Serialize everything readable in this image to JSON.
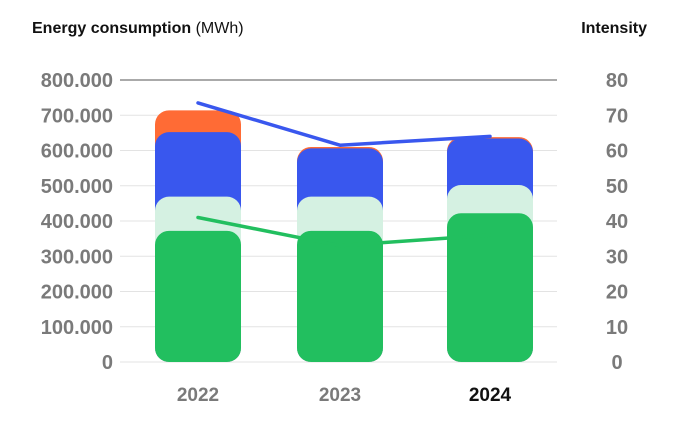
{
  "chart_data": {
    "type": "bar",
    "stacked": true,
    "categories": [
      "2022",
      "2023",
      "2024"
    ],
    "highlighted_category": "2024",
    "ylabel": "Energy consumption",
    "ylabel_unit": "(MWh)",
    "y2label": "Intensity",
    "ylim": [
      0,
      800000
    ],
    "y2lim": [
      0,
      80
    ],
    "yticks": [
      "0",
      "100.000",
      "200.000",
      "300.000",
      "400.000",
      "500.000",
      "600.000",
      "700.000",
      "800.000"
    ],
    "y2ticks": [
      "0",
      "10",
      "20",
      "30",
      "40",
      "50",
      "60",
      "70",
      "80"
    ],
    "grid": true,
    "series": [
      {
        "color": "#22bf5f",
        "values": [
          372000,
          372000,
          422000
        ]
      },
      {
        "color": "#d5f1e2",
        "values": [
          97000,
          97000,
          80000
        ]
      },
      {
        "color": "#3957ee",
        "values": [
          183000,
          137000,
          132000
        ]
      },
      {
        "color": "#ff6b35",
        "values": [
          62000,
          4000,
          4000
        ]
      }
    ],
    "lines": [
      {
        "color": "#3957ee",
        "axis": "right",
        "values": [
          73.5,
          61.5,
          64
        ]
      },
      {
        "color": "#22bf5f",
        "axis": "right",
        "values": [
          41,
          33,
          36
        ]
      }
    ]
  }
}
